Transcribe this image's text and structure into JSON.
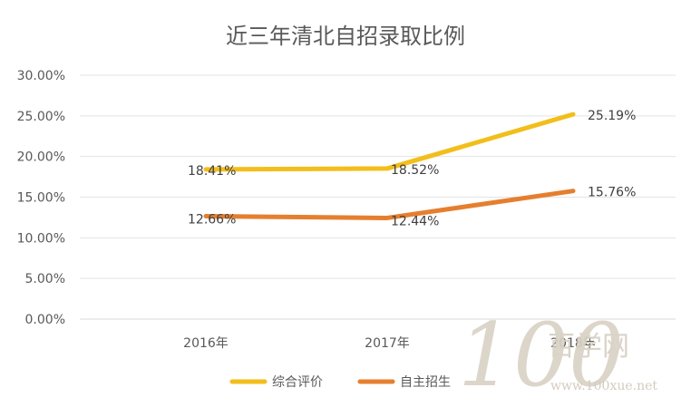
{
  "chart_data": {
    "type": "line",
    "title": "近三年清北自招录取比例",
    "categories": [
      "2016年",
      "2017年",
      "2018年"
    ],
    "series": [
      {
        "name": "综合评价",
        "values": [
          18.41,
          18.52,
          25.19
        ],
        "labels": [
          "18.41%",
          "18.52%",
          "25.19%"
        ],
        "color": "#F2BE1B"
      },
      {
        "name": "自主招生",
        "values": [
          12.66,
          12.44,
          15.76
        ],
        "labels": [
          "12.66%",
          "12.44%",
          "15.76%"
        ],
        "color": "#E57F2F"
      }
    ],
    "ylim": [
      0,
      30
    ],
    "yticks": [
      "0.00%",
      "5.00%",
      "10.00%",
      "15.00%",
      "20.00%",
      "25.00%",
      "30.00%"
    ],
    "grid": true,
    "legend": "bottom"
  },
  "watermark": {
    "logo_text": "百学网",
    "url_text": "www.100xue.net",
    "color": "#cfc6b8"
  }
}
